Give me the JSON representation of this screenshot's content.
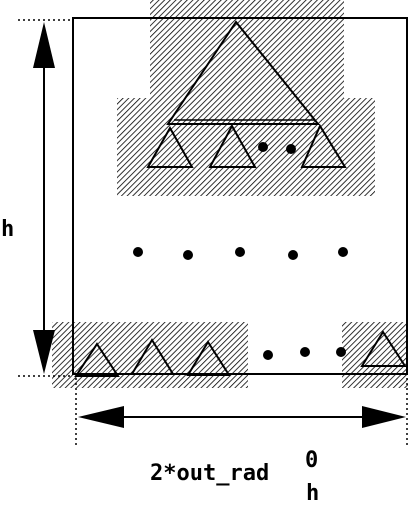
{
  "labels": {
    "height": "h",
    "width_main": "2*out_rad",
    "width_sup": "0",
    "width_sub": "h"
  },
  "colors": {
    "line": "#000000",
    "hatch": "#000000",
    "background": "#ffffff"
  }
}
